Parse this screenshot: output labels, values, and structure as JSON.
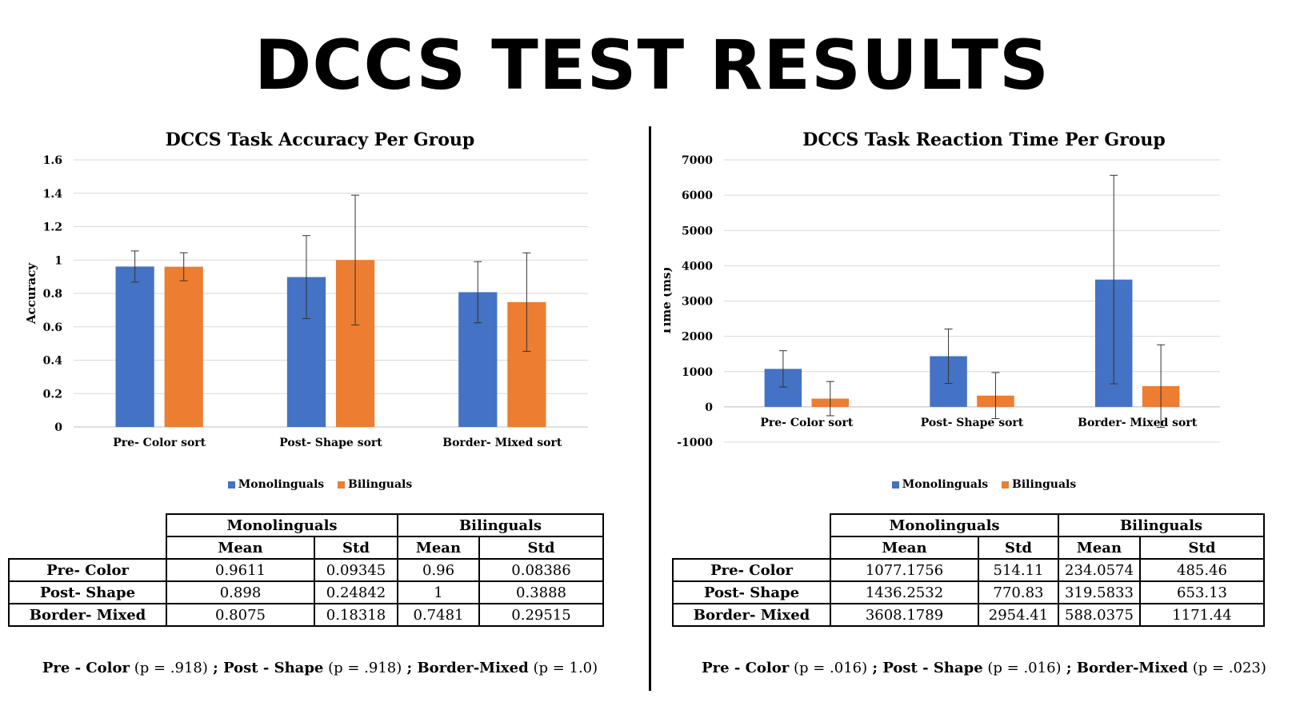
{
  "title": "DCCS TEST RESULTS",
  "colors": {
    "mono": "#4472C4",
    "bi": "#ED7D31",
    "grid": "#d9d9d9"
  },
  "charts": [
    {
      "id": "accuracy",
      "title": "DCCS Task Accuracy Per Group",
      "ylabel": "Accuracy",
      "legend": [
        "Monolinguals",
        "Bilinguals"
      ],
      "table": {
        "group_headers": [
          "Monolinguals",
          "Bilinguals"
        ],
        "sub_headers": [
          "Mean",
          "Std",
          "Mean",
          "Std"
        ],
        "rows": [
          {
            "label": "Pre- Color",
            "cells": [
              "0.9611",
              "0.09345",
              "0.96",
              "0.08386"
            ]
          },
          {
            "label": "Post- Shape",
            "cells": [
              "0.898",
              "0.24842",
              "1",
              "0.3888"
            ]
          },
          {
            "label": "Border- Mixed",
            "cells": [
              "0.8075",
              "0.18318",
              "0.7481",
              "0.29515"
            ]
          }
        ]
      },
      "pvalues": [
        {
          "label": "Pre - Color",
          "value": "(p = .918)",
          "sep": " ; "
        },
        {
          "label": "Post - Shape",
          "value": "(p = .918)",
          "sep": " ;  "
        },
        {
          "label": "Border-Mixed",
          "value": " (p = 1.0)",
          "sep": ""
        }
      ]
    },
    {
      "id": "reaction",
      "title": "DCCS Task Reaction Time Per Group",
      "ylabel": "Time (ms)",
      "legend": [
        "Monolinguals",
        "Bilinguals"
      ],
      "table": {
        "group_headers": [
          "Monolinguals",
          "Bilinguals"
        ],
        "sub_headers": [
          "Mean",
          "Std",
          "Mean",
          "Std"
        ],
        "rows": [
          {
            "label": "Pre- Color",
            "cells": [
              "1077.1756",
              "514.11",
              "234.0574",
              "485.46"
            ]
          },
          {
            "label": "Post- Shape",
            "cells": [
              "1436.2532",
              "770.83",
              "319.5833",
              "653.13"
            ]
          },
          {
            "label": "Border- Mixed",
            "cells": [
              "3608.1789",
              "2954.41",
              "588.0375",
              "1171.44"
            ]
          }
        ]
      },
      "pvalues": [
        {
          "label": "Pre - Color",
          "value": "(p = .016)",
          "sep": " ; "
        },
        {
          "label": "Post - Shape",
          "value": "(p = .016)",
          "sep": " ; "
        },
        {
          "label": "Border-Mixed",
          "value": " (p = .023)",
          "sep": ""
        }
      ]
    }
  ],
  "chart_data": [
    {
      "type": "bar",
      "title": "DCCS Task Accuracy Per Group",
      "xlabel": "",
      "ylabel": "Accuracy",
      "categories": [
        "Pre- Color sort",
        "Post- Shape sort",
        "Border- Mixed sort"
      ],
      "series": [
        {
          "name": "Monolinguals",
          "values": [
            0.9611,
            0.898,
            0.8075
          ],
          "errors": [
            0.09345,
            0.24842,
            0.18318
          ]
        },
        {
          "name": "Bilinguals",
          "values": [
            0.96,
            1,
            0.7481
          ],
          "errors": [
            0.08386,
            0.3888,
            0.29515
          ]
        }
      ],
      "ylim": [
        0,
        1.6
      ],
      "yticks": [
        "0",
        "0.2",
        "0.4",
        "0.6",
        "0.8",
        "1",
        "1.2",
        "1.4",
        "1.6"
      ],
      "grid": true,
      "legend_position": "bottom"
    },
    {
      "type": "bar",
      "title": "DCCS Task Reaction Time Per Group",
      "xlabel": "",
      "ylabel": "Time (ms)",
      "categories": [
        "Pre- Color sort",
        "Post- Shape sort",
        "Border- Mixed sort"
      ],
      "series": [
        {
          "name": "Monolinguals",
          "values": [
            1077.1756,
            1436.2532,
            3608.1789
          ],
          "errors": [
            514.11,
            770.83,
            2954.41
          ]
        },
        {
          "name": "Bilinguals",
          "values": [
            234.0574,
            319.5833,
            588.0375
          ],
          "errors": [
            485.46,
            653.13,
            1171.44
          ]
        }
      ],
      "ylim": [
        -1000,
        7000
      ],
      "yticks": [
        "-1000",
        "0",
        "1000",
        "2000",
        "3000",
        "4000",
        "5000",
        "6000",
        "7000"
      ],
      "grid": true,
      "legend_position": "bottom"
    }
  ]
}
